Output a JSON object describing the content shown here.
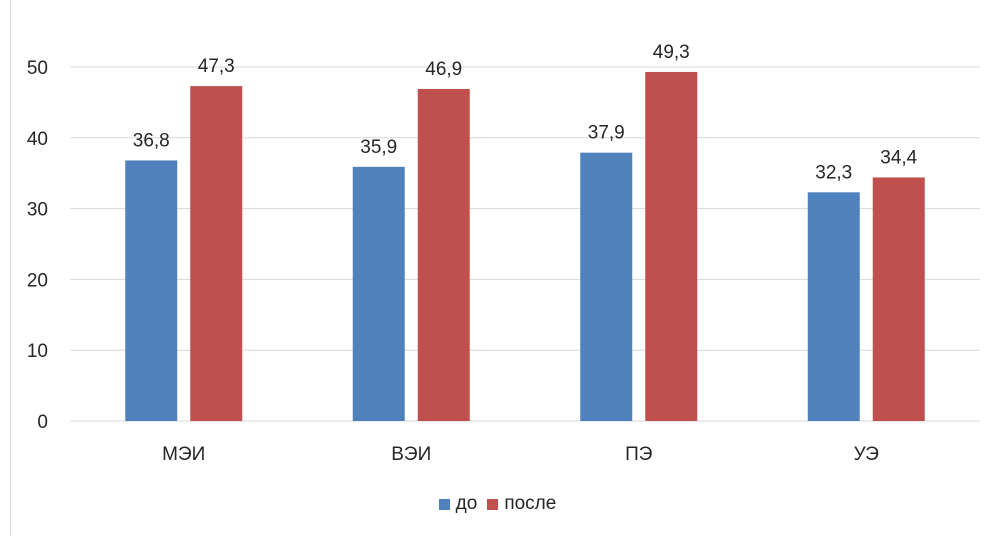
{
  "chart_data": {
    "type": "bar",
    "categories": [
      "МЭИ",
      "ВЭИ",
      "ПЭ",
      "УЭ"
    ],
    "series": [
      {
        "name": "до",
        "values": [
          36.8,
          35.9,
          37.9,
          32.3
        ],
        "labels": [
          "36,8",
          "35,9",
          "37,9",
          "32,3"
        ],
        "color": "#4f81bd"
      },
      {
        "name": "после",
        "values": [
          47.3,
          46.9,
          49.3,
          34.4
        ],
        "labels": [
          "47,3",
          "46,9",
          "49,3",
          "34,4"
        ],
        "color": "#c0504d"
      }
    ],
    "ylim": [
      0,
      50
    ],
    "yticks": [
      "0",
      "10",
      "20",
      "30",
      "40",
      "50"
    ],
    "grid": true,
    "legend": "bottom"
  }
}
